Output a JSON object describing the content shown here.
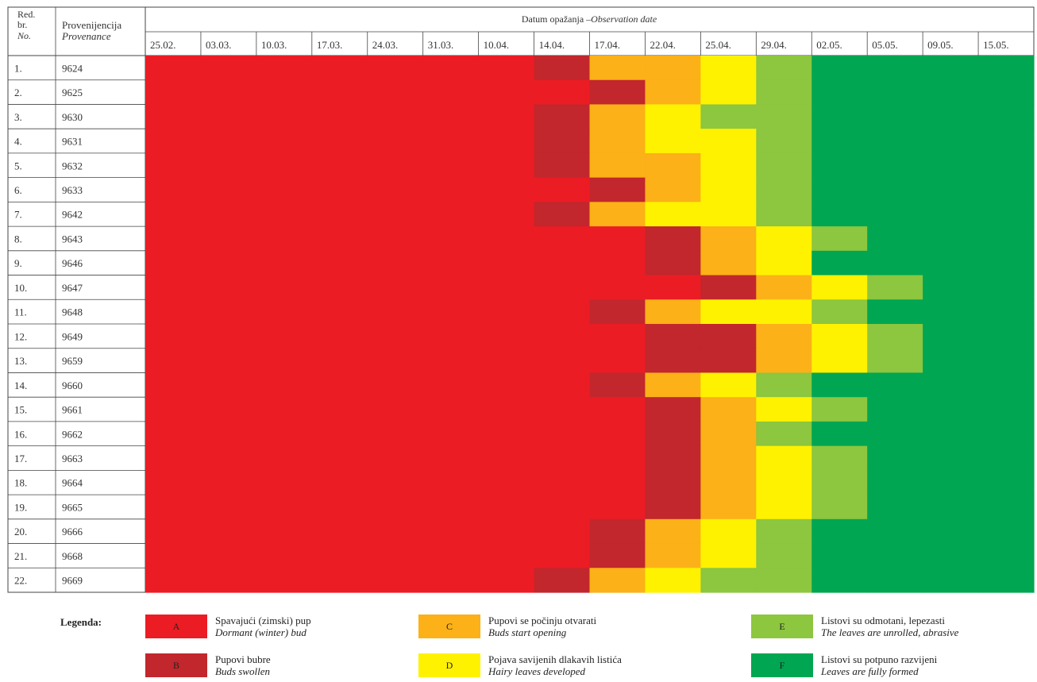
{
  "header": {
    "no_label_lines": [
      "Red.",
      "br."
    ],
    "no_label_en": "No.",
    "provenance_label": "Provenijencija",
    "provenance_label_en": "Provenance",
    "date_title": "Datum opažanja –",
    "date_title_en": "Observation date"
  },
  "chart_data": {
    "type": "heatmap",
    "x": [
      "25.02.",
      "03.03.",
      "10.03.",
      "17.03.",
      "24.03.",
      "31.03.",
      "10.04.",
      "14.04.",
      "17.04.",
      "22.04.",
      "25.04.",
      "29.04.",
      "02.05.",
      "05.05.",
      "09.05.",
      "15.05."
    ],
    "rows": [
      {
        "no": "1.",
        "provenance": "9624",
        "stages": [
          "A",
          "A",
          "A",
          "A",
          "A",
          "A",
          "A",
          "B",
          "C",
          "C",
          "D",
          "E",
          "F",
          "F",
          "F",
          "F"
        ]
      },
      {
        "no": "2.",
        "provenance": "9625",
        "stages": [
          "A",
          "A",
          "A",
          "A",
          "A",
          "A",
          "A",
          "A",
          "B",
          "C",
          "D",
          "E",
          "F",
          "F",
          "F",
          "F"
        ]
      },
      {
        "no": "3.",
        "provenance": "9630",
        "stages": [
          "A",
          "A",
          "A",
          "A",
          "A",
          "A",
          "A",
          "B",
          "C",
          "D",
          "E",
          "E",
          "F",
          "F",
          "F",
          "F"
        ]
      },
      {
        "no": "4.",
        "provenance": "9631",
        "stages": [
          "A",
          "A",
          "A",
          "A",
          "A",
          "A",
          "A",
          "B",
          "C",
          "D",
          "D",
          "E",
          "F",
          "F",
          "F",
          "F"
        ]
      },
      {
        "no": "5.",
        "provenance": "9632",
        "stages": [
          "A",
          "A",
          "A",
          "A",
          "A",
          "A",
          "A",
          "B",
          "C",
          "C",
          "D",
          "E",
          "F",
          "F",
          "F",
          "F"
        ]
      },
      {
        "no": "6.",
        "provenance": "9633",
        "stages": [
          "A",
          "A",
          "A",
          "A",
          "A",
          "A",
          "A",
          "A",
          "B",
          "C",
          "D",
          "E",
          "F",
          "F",
          "F",
          "F"
        ]
      },
      {
        "no": "7.",
        "provenance": "9642",
        "stages": [
          "A",
          "A",
          "A",
          "A",
          "A",
          "A",
          "A",
          "B",
          "C",
          "D",
          "D",
          "E",
          "F",
          "F",
          "F",
          "F"
        ]
      },
      {
        "no": "8.",
        "provenance": "9643",
        "stages": [
          "A",
          "A",
          "A",
          "A",
          "A",
          "A",
          "A",
          "A",
          "A",
          "B",
          "C",
          "D",
          "E",
          "F",
          "F",
          "F"
        ]
      },
      {
        "no": "9.",
        "provenance": "9646",
        "stages": [
          "A",
          "A",
          "A",
          "A",
          "A",
          "A",
          "A",
          "A",
          "A",
          "B",
          "C",
          "D",
          "F",
          "F",
          "F",
          "F"
        ]
      },
      {
        "no": "10.",
        "provenance": "9647",
        "stages": [
          "A",
          "A",
          "A",
          "A",
          "A",
          "A",
          "A",
          "A",
          "A",
          "A",
          "B",
          "C",
          "D",
          "E",
          "F",
          "F"
        ]
      },
      {
        "no": "11.",
        "provenance": "9648",
        "stages": [
          "A",
          "A",
          "A",
          "A",
          "A",
          "A",
          "A",
          "A",
          "B",
          "C",
          "D",
          "D",
          "E",
          "F",
          "F",
          "F"
        ]
      },
      {
        "no": "12.",
        "provenance": "9649",
        "stages": [
          "A",
          "A",
          "A",
          "A",
          "A",
          "A",
          "A",
          "A",
          "A",
          "B",
          "B",
          "C",
          "D",
          "E",
          "F",
          "F"
        ]
      },
      {
        "no": "13.",
        "provenance": "9659",
        "stages": [
          "A",
          "A",
          "A",
          "A",
          "A",
          "A",
          "A",
          "A",
          "A",
          "B",
          "B",
          "C",
          "D",
          "E",
          "F",
          "F"
        ]
      },
      {
        "no": "14.",
        "provenance": "9660",
        "stages": [
          "A",
          "A",
          "A",
          "A",
          "A",
          "A",
          "A",
          "A",
          "B",
          "C",
          "D",
          "E",
          "F",
          "F",
          "F",
          "F"
        ]
      },
      {
        "no": "15.",
        "provenance": "9661",
        "stages": [
          "A",
          "A",
          "A",
          "A",
          "A",
          "A",
          "A",
          "A",
          "A",
          "B",
          "C",
          "D",
          "E",
          "F",
          "F",
          "F"
        ]
      },
      {
        "no": "16.",
        "provenance": "9662",
        "stages": [
          "A",
          "A",
          "A",
          "A",
          "A",
          "A",
          "A",
          "A",
          "A",
          "B",
          "C",
          "E",
          "F",
          "F",
          "F",
          "F"
        ]
      },
      {
        "no": "17.",
        "provenance": "9663",
        "stages": [
          "A",
          "A",
          "A",
          "A",
          "A",
          "A",
          "A",
          "A",
          "A",
          "B",
          "C",
          "D",
          "E",
          "F",
          "F",
          "F"
        ]
      },
      {
        "no": "18.",
        "provenance": "9664",
        "stages": [
          "A",
          "A",
          "A",
          "A",
          "A",
          "A",
          "A",
          "A",
          "A",
          "B",
          "C",
          "D",
          "E",
          "F",
          "F",
          "F"
        ]
      },
      {
        "no": "19.",
        "provenance": "9665",
        "stages": [
          "A",
          "A",
          "A",
          "A",
          "A",
          "A",
          "A",
          "A",
          "A",
          "B",
          "C",
          "D",
          "E",
          "F",
          "F",
          "F"
        ]
      },
      {
        "no": "20.",
        "provenance": "9666",
        "stages": [
          "A",
          "A",
          "A",
          "A",
          "A",
          "A",
          "A",
          "A",
          "B",
          "C",
          "D",
          "E",
          "F",
          "F",
          "F",
          "F"
        ]
      },
      {
        "no": "21.",
        "provenance": "9668",
        "stages": [
          "A",
          "A",
          "A",
          "A",
          "A",
          "A",
          "A",
          "A",
          "B",
          "C",
          "D",
          "E",
          "F",
          "F",
          "F",
          "F"
        ]
      },
      {
        "no": "22.",
        "provenance": "9669",
        "stages": [
          "A",
          "A",
          "A",
          "A",
          "A",
          "A",
          "A",
          "B",
          "C",
          "D",
          "E",
          "E",
          "F",
          "F",
          "F",
          "F"
        ]
      }
    ],
    "stage_colors": {
      "A": "#ec1c24",
      "B": "#c1272d",
      "C": "#fbb117",
      "D": "#fff200",
      "E": "#8dc63f",
      "F": "#00a651"
    },
    "grid": false
  },
  "legend": {
    "title": "Legenda:",
    "items": [
      {
        "code": "A",
        "hr": "Spavajući (zimski) pup",
        "en": "Dormant (winter) bud"
      },
      {
        "code": "B",
        "hr": "Pupovi bubre",
        "en": "Buds swollen"
      },
      {
        "code": "C",
        "hr": "Pupovi se počinju otvarati",
        "en": "Buds start opening"
      },
      {
        "code": "D",
        "hr": "Pojava savijenih dlakavih listića",
        "en": "Hairy leaves developed"
      },
      {
        "code": "E",
        "hr": "Listovi su odmotani, lepezasti",
        "en": "The leaves are unrolled, abrasive"
      },
      {
        "code": "F",
        "hr": "Listovi su potpuno razvijeni",
        "en": "Leaves are fully formed"
      }
    ]
  }
}
